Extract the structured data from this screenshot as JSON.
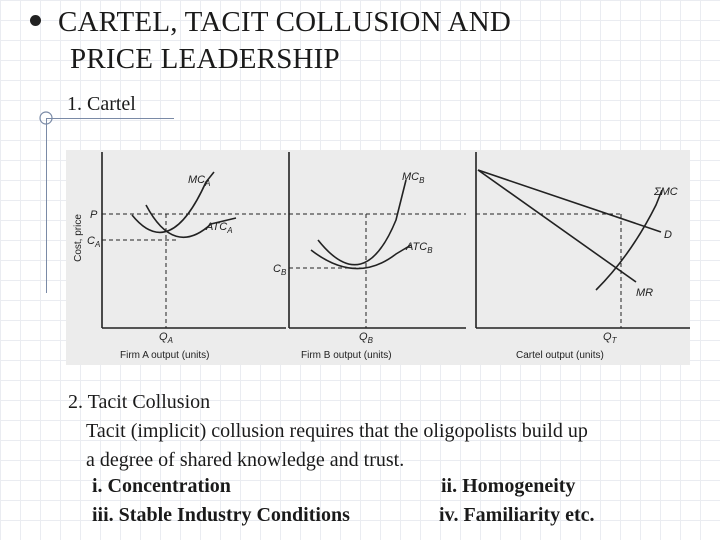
{
  "slide": {
    "title_line1": "CARTEL, TACIT COLLUSION AND",
    "title_line2": "PRICE LEADERSHIP",
    "section1": "1. Cartel",
    "section2": "2. Tacit Collusion",
    "paragraph_line1": "Tacit (implicit) collusion requires that the oligopolists build up",
    "paragraph_line2": "a degree of shared knowledge and trust.",
    "items": [
      "i. Concentration",
      "ii. Homogeneity",
      "iii. Stable Industry Conditions",
      "iv. Familiarity etc."
    ]
  },
  "figure": {
    "ylabel": "Cost, price",
    "panel_a": {
      "mc": "MC",
      "mc_sub": "A",
      "atc": "ATC",
      "atc_sub": "A",
      "p": "P",
      "c": "C",
      "c_sub": "A",
      "q": "Q",
      "q_sub": "A",
      "xlabel": "Firm A output (units)"
    },
    "panel_b": {
      "mc": "MC",
      "mc_sub": "B",
      "atc": "ATC",
      "atc_sub": "B",
      "c": "C",
      "c_sub": "B",
      "q": "Q",
      "q_sub": "B",
      "xlabel": "Firm B output (units)"
    },
    "panel_c": {
      "smc": "ΣMC",
      "d": "D",
      "mr": "MR",
      "q": "Q",
      "q_sub": "T",
      "xlabel": "Cartel output (units)"
    }
  }
}
